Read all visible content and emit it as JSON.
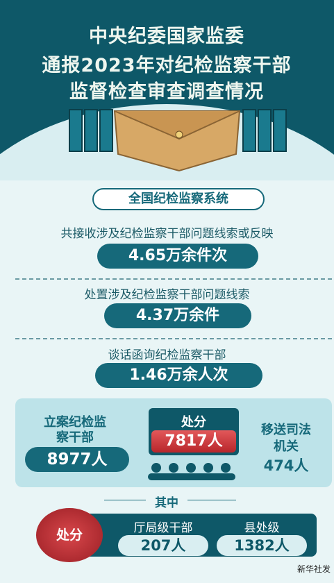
{
  "header": {
    "title_lines": [
      "中央纪委国家监委",
      "通报2023年对纪检监察干部",
      "监督检查审查调查情况"
    ]
  },
  "section_heading": "全国纪检监察系统",
  "stats": [
    {
      "label": "共接收涉及纪检监察干部问题线索或反映",
      "value": "4.65万余件次"
    },
    {
      "label": "处置涉及纪检监察干部问题线索",
      "value": "4.37万余件"
    },
    {
      "label": "谈话函询纪检监察干部",
      "value": "1.46万余人次"
    }
  ],
  "breakdown": {
    "filed": {
      "label": "立案纪检监察干部",
      "value": "8977人"
    },
    "punished": {
      "label": "处分",
      "value": "7817人"
    },
    "transferred": {
      "label": "移送司法机关",
      "value": "474人"
    },
    "among": "其中",
    "sub_label": "处分",
    "bureau": {
      "label": "厅局级干部",
      "value": "207人"
    },
    "county": {
      "label": "县处级",
      "value": "1382人"
    }
  },
  "credit": "新华社发"
}
